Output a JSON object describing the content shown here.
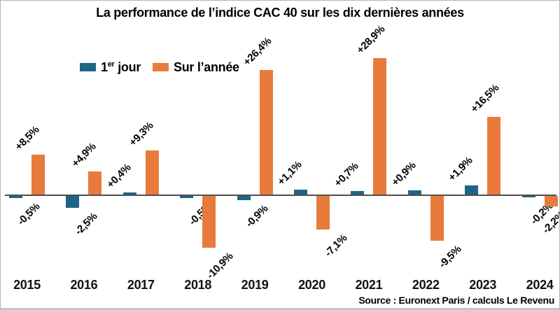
{
  "title": "La performance de l’indice CAC 40 sur les dix dernières années",
  "legend": {
    "first_day": {
      "base": "1",
      "sup": "er",
      "rest": " jour"
    },
    "year": {
      "label": "Sur l’année"
    }
  },
  "source": "Source : Euronext Paris / calculs Le Revenu",
  "colors": {
    "first_day": "#1e6485",
    "year": "#e87b3c",
    "axis": "#4f4f4f",
    "text": "#000000",
    "border": "#b5b5b5"
  },
  "chart_data": {
    "type": "bar",
    "title": "La performance de l’indice CAC 40 sur les dix dernières années",
    "categories": [
      "2015",
      "2016",
      "2017",
      "2018",
      "2019",
      "2020",
      "2021",
      "2022",
      "2023",
      "2024"
    ],
    "series": [
      {
        "name": "1er jour",
        "color": "#1e6485",
        "values": [
          -0.5,
          -2.5,
          0.4,
          -0.5,
          -0.9,
          1.1,
          0.7,
          0.9,
          1.9,
          -0.2
        ],
        "labels": [
          "-0,5%",
          "-2,5%",
          "+0,4%",
          "-0,5%",
          "-0,9%",
          "+1,1%",
          "+0,7%",
          "+0,9%",
          "+1,9%",
          "-0,2%"
        ]
      },
      {
        "name": "Sur l’année",
        "color": "#e87b3c",
        "values": [
          8.5,
          4.9,
          9.3,
          -10.9,
          26.4,
          -7.1,
          28.9,
          -9.5,
          16.5,
          -2.2
        ],
        "labels": [
          "+8,5%",
          "+4,9%",
          "+9,3%",
          "-10,9%",
          "+26,4%",
          "-7,1%",
          "+28,9%",
          "-9,5%",
          "+16,5%",
          "-2,2%"
        ]
      }
    ],
    "xlabel": "",
    "ylabel": "",
    "ylim": [
      -13,
      30
    ],
    "grid": false,
    "legend_position": "top-left",
    "value_suffix": "%",
    "source": "Source : Euronext Paris / calculs Le Revenu"
  }
}
